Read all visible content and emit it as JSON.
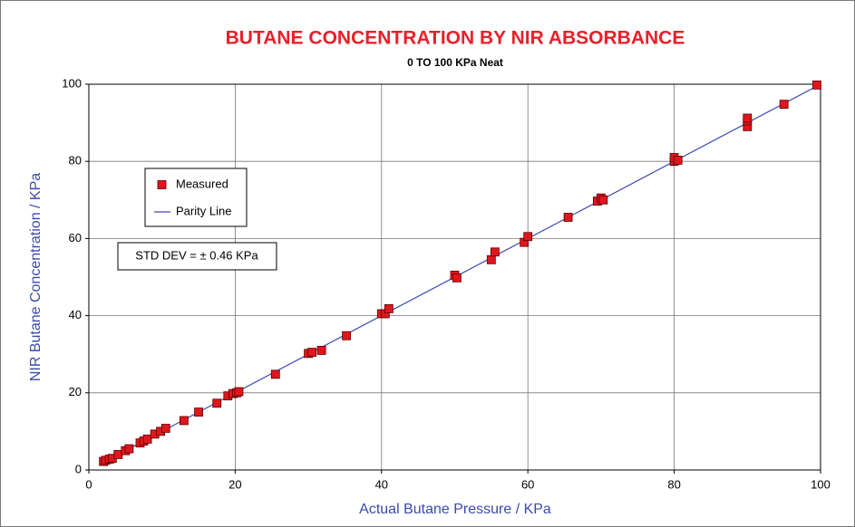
{
  "chart_data": {
    "type": "scatter",
    "title": "BUTANE CONCENTRATION BY NIR ABSORBANCE",
    "subtitle": "0 TO 100 KPa Neat",
    "x_label": "Actual Butane Pressure / KPa",
    "y_label": "NIR Butane Concentration / KPa",
    "xlim": [
      0,
      100
    ],
    "ylim": [
      0,
      100
    ],
    "xticks": [
      0,
      20,
      40,
      60,
      80,
      100
    ],
    "yticks": [
      0,
      20,
      40,
      60,
      80,
      100
    ],
    "grid": true,
    "legend": "upper left",
    "annotations": [
      "STD DEV = ± 0.46 KPa"
    ],
    "series": [
      {
        "name": "Measured",
        "style": "marker",
        "color": "#e0161e",
        "x": [
          2,
          2.3,
          2.8,
          3.2,
          4,
          5,
          5.5,
          7,
          7.5,
          8,
          9,
          9.8,
          10.5,
          13,
          15,
          17.5,
          19,
          19.7,
          20.2,
          20.5,
          25.5,
          30,
          30.5,
          31.8,
          35.2,
          40,
          40.5,
          41,
          50,
          50.3,
          55,
          55.5,
          59.5,
          60,
          65.5,
          69.5,
          70,
          70.3,
          80,
          80,
          80.5,
          90,
          90,
          90,
          95,
          99.5
        ],
        "values": [
          2.2,
          2.5,
          2.8,
          3,
          4,
          5,
          5.5,
          7,
          7.5,
          8,
          9.3,
          10,
          10.8,
          12.8,
          15,
          17.3,
          19.2,
          19.8,
          20,
          20.3,
          24.8,
          30.2,
          30.5,
          31,
          34.8,
          40.5,
          40.5,
          41.8,
          50.5,
          49.8,
          54.5,
          56.5,
          59,
          60.5,
          65.5,
          69.7,
          70.5,
          70,
          80,
          81,
          80.3,
          89,
          90.5,
          91.2,
          94.8,
          99.8
        ]
      },
      {
        "name": "Parity Line",
        "style": "line",
        "color": "#3c4cb0",
        "x": [
          2,
          100
        ],
        "values": [
          2,
          100
        ]
      }
    ]
  }
}
